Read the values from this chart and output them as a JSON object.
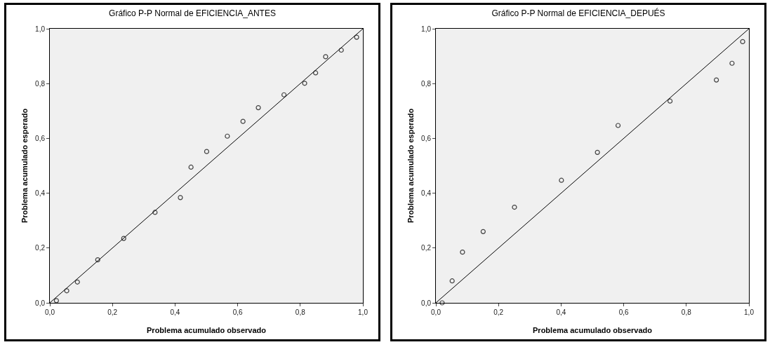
{
  "chart_data": [
    {
      "type": "scatter",
      "title": "Gráfico P-P Normal de EFICIENCIA_ANTES",
      "xlabel": "Problema acumulado observado",
      "ylabel": "Problema acumulado esperado",
      "xlim": [
        0,
        1
      ],
      "ylim": [
        0,
        1
      ],
      "xticks": [
        {
          "value": 0,
          "label": "0,0"
        },
        {
          "value": 0.2,
          "label": "0,2"
        },
        {
          "value": 0.4,
          "label": "0,4"
        },
        {
          "value": 0.6,
          "label": "0,6"
        },
        {
          "value": 0.8,
          "label": "0,8"
        },
        {
          "value": 1,
          "label": "1,0"
        }
      ],
      "yticks": [
        {
          "value": 0,
          "label": "0,0"
        },
        {
          "value": 0.2,
          "label": "0,2"
        },
        {
          "value": 0.4,
          "label": "0,4"
        },
        {
          "value": 0.6,
          "label": "0,6"
        },
        {
          "value": 0.8,
          "label": "0,8"
        },
        {
          "value": 1,
          "label": "1,0"
        }
      ],
      "grid": false,
      "legend": false,
      "series": [
        {
          "marker": "circle",
          "color": "#444444",
          "x": [
            0.021,
            0.054,
            0.088,
            0.153,
            0.236,
            0.336,
            0.417,
            0.451,
            0.501,
            0.567,
            0.617,
            0.666,
            0.748,
            0.814,
            0.849,
            0.881,
            0.931,
            0.98
          ],
          "values": [
            0.008,
            0.044,
            0.076,
            0.157,
            0.235,
            0.33,
            0.384,
            0.495,
            0.552,
            0.608,
            0.662,
            0.712,
            0.759,
            0.801,
            0.839,
            0.898,
            0.922,
            0.969
          ]
        },
        {
          "type": "line",
          "marker": "none",
          "color": "#000000",
          "x": [
            0,
            1
          ],
          "values": [
            0,
            1
          ]
        }
      ]
    },
    {
      "type": "scatter",
      "title": "Gráfico P-P Normal de EFICIENCIA_DEPUÉS",
      "xlabel": "Problema acumulado observado",
      "ylabel": "Problema acumulado esperado",
      "xlim": [
        0,
        1
      ],
      "ylim": [
        0,
        1
      ],
      "xticks": [
        {
          "value": 0,
          "label": "0,0"
        },
        {
          "value": 0.2,
          "label": "0,2"
        },
        {
          "value": 0.4,
          "label": "0,4"
        },
        {
          "value": 0.6,
          "label": "0,6"
        },
        {
          "value": 0.8,
          "label": "0,8"
        },
        {
          "value": 1,
          "label": "1,0"
        }
      ],
      "yticks": [
        {
          "value": 0,
          "label": "0,0"
        },
        {
          "value": 0.2,
          "label": "0,2"
        },
        {
          "value": 0.4,
          "label": "0,4"
        },
        {
          "value": 0.6,
          "label": "0,6"
        },
        {
          "value": 0.8,
          "label": "0,8"
        },
        {
          "value": 1,
          "label": "1,0"
        }
      ],
      "grid": false,
      "legend": false,
      "series": [
        {
          "marker": "circle",
          "color": "#444444",
          "x": [
            0.02,
            0.052,
            0.085,
            0.151,
            0.251,
            0.401,
            0.516,
            0.582,
            0.748,
            0.896,
            0.946,
            0.98
          ],
          "values": [
            0.0,
            0.08,
            0.185,
            0.26,
            0.349,
            0.447,
            0.549,
            0.647,
            0.736,
            0.813,
            0.874,
            0.953
          ]
        },
        {
          "type": "line",
          "marker": "none",
          "color": "#000000",
          "x": [
            0,
            1
          ],
          "values": [
            0,
            1
          ]
        }
      ]
    }
  ]
}
